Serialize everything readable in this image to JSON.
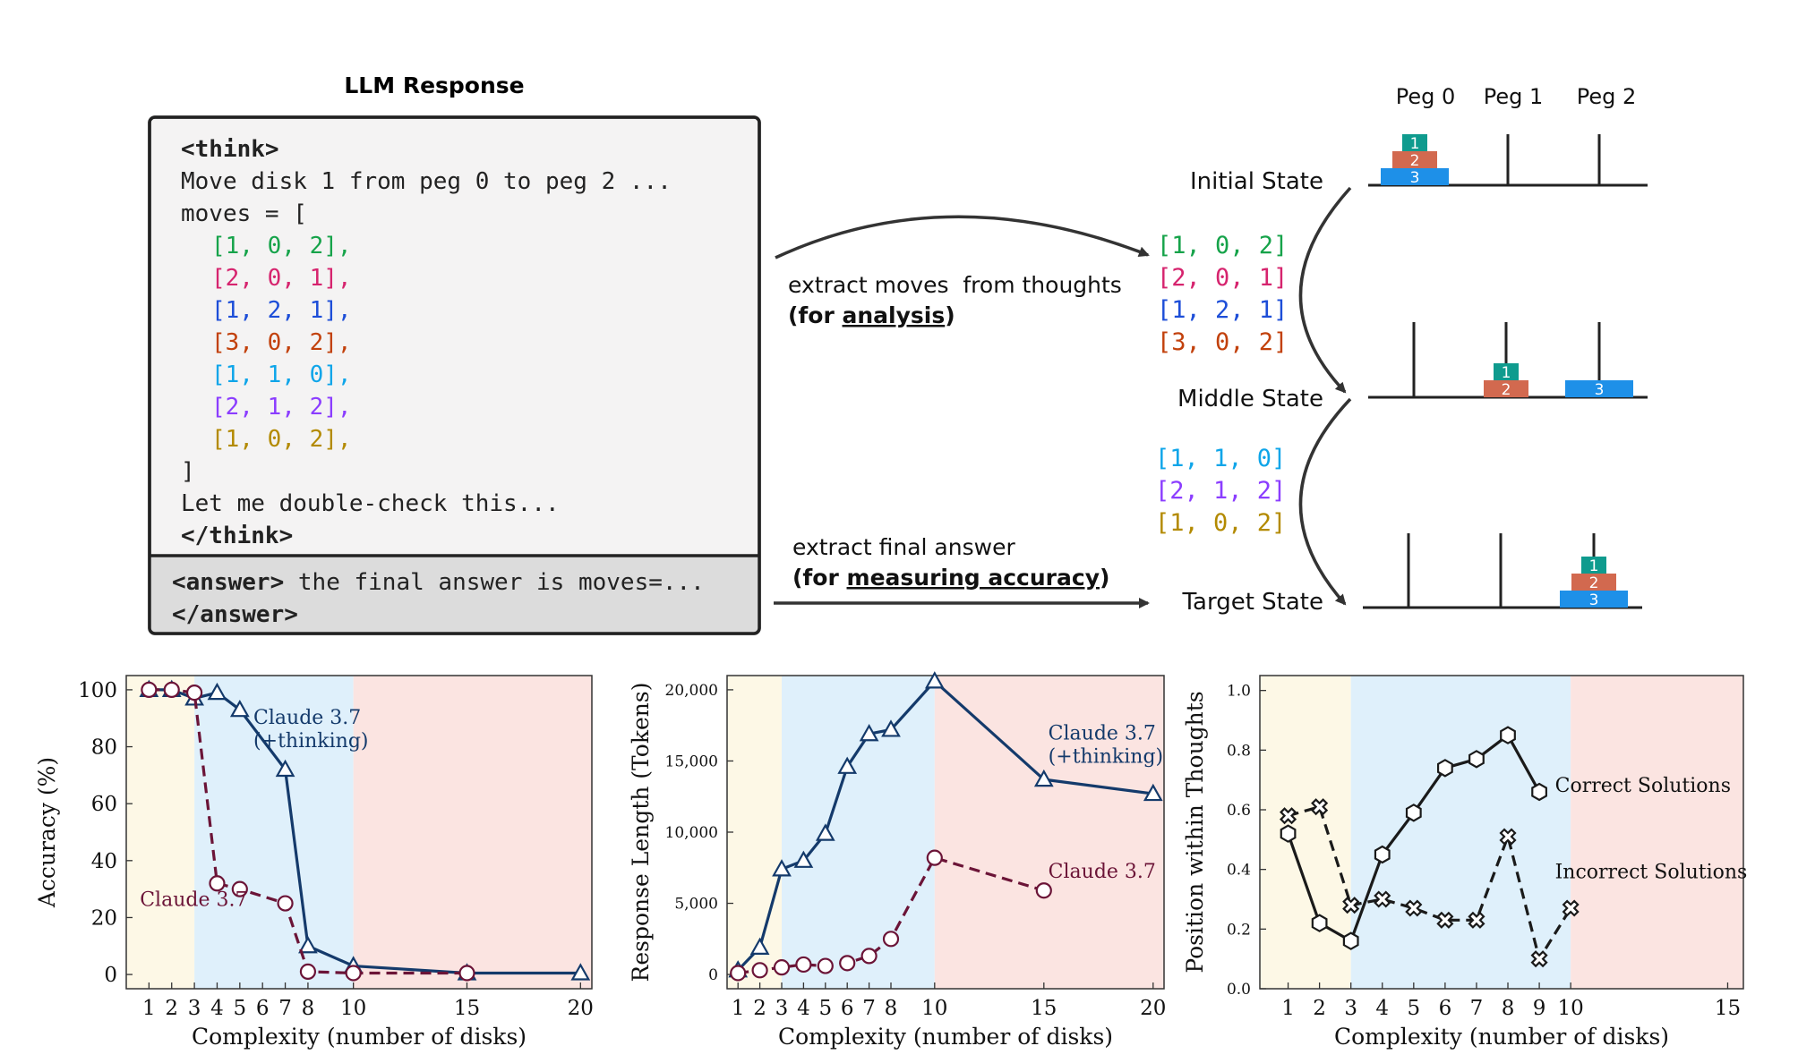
{
  "llm_response": {
    "title": "LLM Response",
    "think_open": "<think>",
    "line_move": "Move disk 1 from peg 0 to peg 2 ...",
    "line_moves": "moves = [",
    "moves": [
      {
        "text": "[1, 0, 2],",
        "color": "#16a34a"
      },
      {
        "text": "[2, 0, 1],",
        "color": "#d6246e"
      },
      {
        "text": "[1, 2, 1],",
        "color": "#1d4ed8"
      },
      {
        "text": "[3, 0, 2],",
        "color": "#c2410c"
      },
      {
        "text": "[1, 1, 0],",
        "color": "#0ea5e9"
      },
      {
        "text": "[2, 1, 2],",
        "color": "#8b3dff"
      },
      {
        "text": "[1, 0, 2],",
        "color": "#b38a00"
      }
    ],
    "close_bracket": "]",
    "double_check": "Let me double-check this...",
    "think_close": "</think>",
    "answer_open": "<answer>",
    "answer_text": " the final answer is moves=...",
    "answer_close": "</answer>"
  },
  "arrows": {
    "extract_moves_line1": "extract moves  from thoughts",
    "extract_moves_for": "(for ",
    "extract_moves_word": "analysis",
    "extract_moves_close": ")",
    "extract_final_line1": "extract final answer",
    "extract_final_for": "(for ",
    "extract_final_word": "measuring accuracy",
    "extract_final_close": ")"
  },
  "extracted_moves_a": [
    {
      "text": "[1, 0, 2]",
      "color": "#16a34a"
    },
    {
      "text": "[2, 0, 1]",
      "color": "#d6246e"
    },
    {
      "text": "[1, 2, 1]",
      "color": "#1d4ed8"
    },
    {
      "text": "[3, 0, 2]",
      "color": "#c2410c"
    }
  ],
  "extracted_moves_b": [
    {
      "text": "[1, 1, 0]",
      "color": "#0ea5e9"
    },
    {
      "text": "[2, 1, 2]",
      "color": "#8b3dff"
    },
    {
      "text": "[1, 0, 2]",
      "color": "#b38a00"
    }
  ],
  "states": {
    "initial": "Initial State",
    "middle": "Middle State",
    "target": "Target State",
    "peg_labels": [
      "Peg 0",
      "Peg 1",
      "Peg 2"
    ]
  },
  "disks": {
    "labels": [
      "1",
      "2",
      "3"
    ],
    "colors": [
      "#0f9b8e",
      "#d2694f",
      "#1e90e8"
    ]
  },
  "chart_data": [
    {
      "type": "line",
      "xlabel": "Complexity (number of disks)",
      "ylabel": "Accuracy (%)",
      "xlim": [
        0,
        20.5
      ],
      "ylim": [
        -5,
        105
      ],
      "xticks": [
        1,
        2,
        3,
        4,
        5,
        6,
        7,
        8,
        10,
        15,
        20
      ],
      "yticks": [
        0,
        20,
        40,
        60,
        80,
        100
      ],
      "regions": [
        {
          "from": 0,
          "to": 3,
          "color": "#fdf8e6"
        },
        {
          "from": 3,
          "to": 10,
          "color": "#dff0fb"
        },
        {
          "from": 10,
          "to": 20.5,
          "color": "#fbe4e1"
        }
      ],
      "series": [
        {
          "name": "Claude 3.7 (+thinking)",
          "label_lines": [
            "Claude 3.7",
            "(+thinking)"
          ],
          "color": "#143a6b",
          "dash": false,
          "marker": "triangle",
          "x": [
            1,
            2,
            3,
            4,
            5,
            7,
            8,
            10,
            15,
            20
          ],
          "y": [
            100,
            100,
            97,
            99,
            93,
            72,
            10,
            3,
            0.5,
            0.5
          ],
          "label_at": [
            5.6,
            88
          ]
        },
        {
          "name": "Claude 3.7",
          "label_lines": [
            "Claude 3.7"
          ],
          "color": "#6b1437",
          "dash": true,
          "marker": "circle",
          "x": [
            1,
            2,
            3,
            4,
            5,
            7,
            8,
            10,
            15
          ],
          "y": [
            100,
            100,
            99,
            32,
            30,
            25,
            1,
            0.5,
            0.5
          ],
          "label_at": [
            0.6,
            24
          ]
        }
      ]
    },
    {
      "type": "line",
      "xlabel": "Complexity (number of disks)",
      "ylabel": "Response Length (Tokens)",
      "xlim": [
        0.5,
        20.5
      ],
      "ylim": [
        -1000,
        21000
      ],
      "xticks": [
        1,
        2,
        3,
        4,
        5,
        6,
        7,
        8,
        10,
        15,
        20
      ],
      "yticks": [
        0,
        5000,
        10000,
        15000,
        20000
      ],
      "ytick_labels": [
        "0",
        "5,000",
        "10,000",
        "15,000",
        "20,000"
      ],
      "regions": [
        {
          "from": 0.5,
          "to": 3,
          "color": "#fdf8e6"
        },
        {
          "from": 3,
          "to": 10,
          "color": "#dff0fb"
        },
        {
          "from": 10,
          "to": 20.5,
          "color": "#fbe4e1"
        }
      ],
      "series": [
        {
          "name": "Claude 3.7 (+thinking)",
          "label_lines": [
            "Claude 3.7",
            "(+thinking)"
          ],
          "color": "#143a6b",
          "dash": false,
          "marker": "triangle",
          "x": [
            1,
            2,
            3,
            4,
            5,
            6,
            7,
            8,
            10,
            15,
            20
          ],
          "y": [
            300,
            1900,
            7400,
            8000,
            9900,
            14600,
            16900,
            17200,
            20600,
            13700,
            12700
          ],
          "label_at": [
            15.2,
            16500
          ]
        },
        {
          "name": "Claude 3.7",
          "label_lines": [
            "Claude 3.7"
          ],
          "color": "#6b1437",
          "dash": true,
          "marker": "circle",
          "x": [
            1,
            2,
            3,
            4,
            5,
            6,
            7,
            8,
            10,
            15
          ],
          "y": [
            100,
            300,
            500,
            700,
            600,
            800,
            1300,
            2500,
            8200,
            5900
          ],
          "label_at": [
            15.2,
            6800
          ]
        }
      ]
    },
    {
      "type": "line",
      "xlabel": "Complexity (number of disks)",
      "ylabel": "Position within Thoughts",
      "xlim": [
        0.1,
        15.5
      ],
      "ylim": [
        0,
        1.05
      ],
      "xticks": [
        1,
        2,
        3,
        4,
        5,
        6,
        7,
        8,
        9,
        10,
        15
      ],
      "yticks": [
        0,
        0.2,
        0.4,
        0.6,
        0.8,
        1.0
      ],
      "ytick_labels": [
        "0.0",
        "0.2",
        "0.4",
        "0.6",
        "0.8",
        "1.0"
      ],
      "regions": [
        {
          "from": 0.1,
          "to": 3,
          "color": "#fdf8e6"
        },
        {
          "from": 3,
          "to": 10,
          "color": "#dff0fb"
        },
        {
          "from": 10,
          "to": 15.5,
          "color": "#fbe4e1"
        }
      ],
      "series": [
        {
          "name": "Correct Solutions",
          "label_lines": [
            "Correct Solutions"
          ],
          "color": "#1a1a1a",
          "dash": false,
          "marker": "hexagon",
          "x": [
            1,
            2,
            3,
            4,
            5,
            6,
            7,
            8,
            9
          ],
          "y": [
            0.52,
            0.22,
            0.16,
            0.45,
            0.59,
            0.74,
            0.77,
            0.85,
            0.66
          ],
          "label_at": [
            9.5,
            0.66
          ]
        },
        {
          "name": "Incorrect Solutions",
          "label_lines": [
            "Incorrect Solutions"
          ],
          "color": "#1a1a1a",
          "dash": true,
          "marker": "cross",
          "x": [
            1,
            2,
            3,
            4,
            5,
            6,
            7,
            8,
            9,
            10
          ],
          "y": [
            0.58,
            0.61,
            0.28,
            0.3,
            0.27,
            0.23,
            0.23,
            0.51,
            0.1,
            0.27
          ],
          "label_at": [
            9.5,
            0.37
          ]
        }
      ]
    }
  ]
}
